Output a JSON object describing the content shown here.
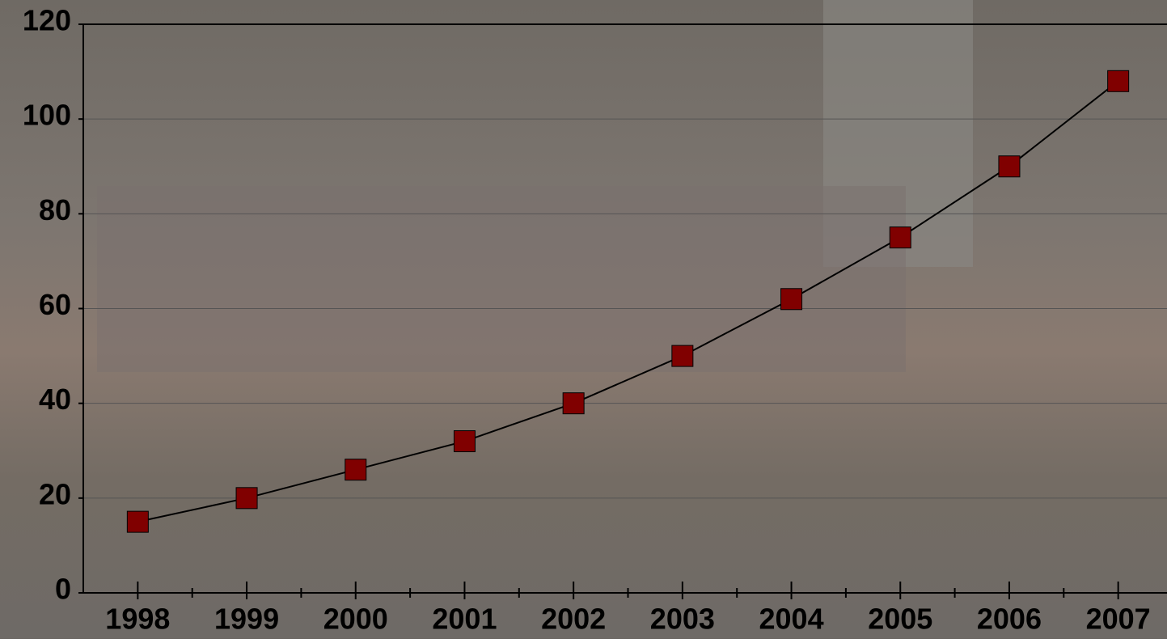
{
  "chart_data": {
    "type": "line",
    "categories": [
      "1998",
      "1999",
      "2000",
      "2001",
      "2002",
      "2003",
      "2004",
      "2005",
      "2006",
      "2007"
    ],
    "series": [
      {
        "color": "#800000",
        "values": [
          15,
          20,
          26,
          32,
          40,
          50,
          62,
          75,
          90,
          108
        ]
      }
    ],
    "ylim": [
      0,
      120
    ],
    "yticks": [
      0,
      20,
      40,
      60,
      80,
      100,
      120
    ],
    "grid": true
  }
}
